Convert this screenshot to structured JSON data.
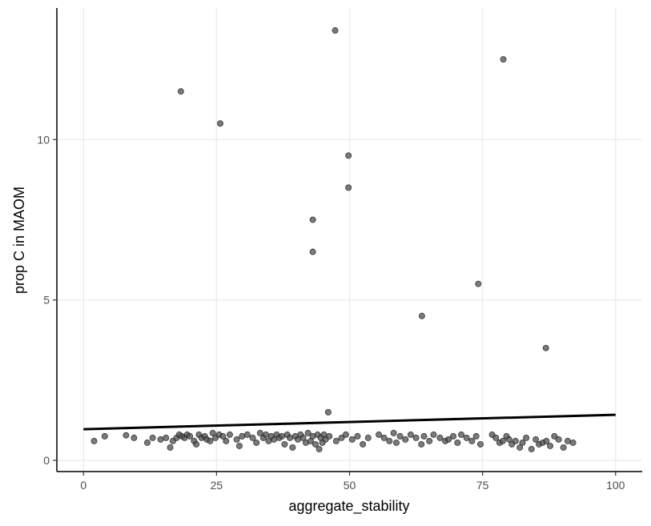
{
  "chart_data": {
    "type": "scatter",
    "xlabel": "aggregate_stability",
    "ylabel": "prop C in MAOM",
    "xlim": [
      -5,
      105
    ],
    "ylim": [
      -0.35,
      14.1
    ],
    "x_ticks": [
      0,
      25,
      50,
      75,
      100
    ],
    "x_tick_labels": [
      "0",
      "25",
      "50",
      "75",
      "100"
    ],
    "y_ticks": [
      0,
      5,
      10
    ],
    "y_tick_labels": [
      "0",
      "5",
      "10"
    ],
    "grid": true,
    "legend": "none",
    "point_color": "#4d4d4d",
    "line_color": "#000000",
    "points": [
      [
        47.3,
        13.4
      ],
      [
        78.9,
        12.5
      ],
      [
        18.3,
        11.5
      ],
      [
        25.7,
        10.5
      ],
      [
        49.8,
        9.5
      ],
      [
        49.8,
        8.5
      ],
      [
        43.1,
        7.5
      ],
      [
        43.1,
        6.5
      ],
      [
        74.2,
        5.5
      ],
      [
        63.6,
        4.5
      ],
      [
        86.9,
        3.5
      ],
      [
        46.0,
        1.5
      ],
      [
        2.0,
        0.6
      ],
      [
        4.0,
        0.75
      ],
      [
        8.0,
        0.78
      ],
      [
        9.5,
        0.7
      ],
      [
        12.0,
        0.55
      ],
      [
        13.0,
        0.7
      ],
      [
        14.5,
        0.65
      ],
      [
        15.5,
        0.7
      ],
      [
        16.3,
        0.4
      ],
      [
        16.8,
        0.6
      ],
      [
        17.5,
        0.7
      ],
      [
        18.0,
        0.8
      ],
      [
        18.5,
        0.75
      ],
      [
        19.0,
        0.7
      ],
      [
        19.5,
        0.8
      ],
      [
        20.0,
        0.75
      ],
      [
        20.8,
        0.6
      ],
      [
        21.2,
        0.5
      ],
      [
        21.7,
        0.8
      ],
      [
        22.2,
        0.7
      ],
      [
        22.8,
        0.75
      ],
      [
        23.2,
        0.65
      ],
      [
        23.8,
        0.6
      ],
      [
        24.3,
        0.85
      ],
      [
        24.8,
        0.7
      ],
      [
        25.5,
        0.8
      ],
      [
        26.2,
        0.75
      ],
      [
        26.8,
        0.6
      ],
      [
        27.5,
        0.8
      ],
      [
        28.8,
        0.65
      ],
      [
        29.3,
        0.45
      ],
      [
        29.8,
        0.75
      ],
      [
        30.8,
        0.8
      ],
      [
        31.8,
        0.7
      ],
      [
        32.5,
        0.55
      ],
      [
        33.2,
        0.85
      ],
      [
        33.8,
        0.7
      ],
      [
        34.3,
        0.8
      ],
      [
        34.8,
        0.6
      ],
      [
        35.3,
        0.75
      ],
      [
        35.8,
        0.65
      ],
      [
        36.3,
        0.8
      ],
      [
        36.8,
        0.7
      ],
      [
        37.3,
        0.75
      ],
      [
        37.8,
        0.5
      ],
      [
        38.3,
        0.8
      ],
      [
        38.8,
        0.7
      ],
      [
        39.3,
        0.4
      ],
      [
        39.8,
        0.75
      ],
      [
        40.3,
        0.65
      ],
      [
        40.8,
        0.8
      ],
      [
        41.3,
        0.7
      ],
      [
        41.8,
        0.55
      ],
      [
        42.2,
        0.85
      ],
      [
        42.7,
        0.6
      ],
      [
        43.1,
        0.75
      ],
      [
        43.6,
        0.5
      ],
      [
        44.0,
        0.8
      ],
      [
        44.3,
        0.35
      ],
      [
        44.6,
        0.7
      ],
      [
        44.9,
        0.55
      ],
      [
        45.2,
        0.8
      ],
      [
        45.5,
        0.65
      ],
      [
        46.2,
        0.75
      ],
      [
        47.5,
        0.6
      ],
      [
        48.5,
        0.7
      ],
      [
        49.3,
        0.8
      ],
      [
        50.5,
        0.65
      ],
      [
        51.5,
        0.75
      ],
      [
        52.5,
        0.5
      ],
      [
        53.5,
        0.7
      ],
      [
        55.5,
        0.8
      ],
      [
        56.5,
        0.7
      ],
      [
        57.5,
        0.6
      ],
      [
        58.3,
        0.85
      ],
      [
        58.8,
        0.55
      ],
      [
        59.5,
        0.75
      ],
      [
        60.5,
        0.65
      ],
      [
        61.5,
        0.8
      ],
      [
        62.5,
        0.7
      ],
      [
        63.5,
        0.5
      ],
      [
        64.0,
        0.75
      ],
      [
        65.0,
        0.6
      ],
      [
        65.8,
        0.8
      ],
      [
        67.0,
        0.7
      ],
      [
        68.0,
        0.6
      ],
      [
        68.6,
        0.65
      ],
      [
        69.5,
        0.75
      ],
      [
        70.3,
        0.55
      ],
      [
        71.0,
        0.8
      ],
      [
        72.0,
        0.7
      ],
      [
        73.0,
        0.6
      ],
      [
        73.8,
        0.75
      ],
      [
        74.6,
        0.5
      ],
      [
        76.8,
        0.8
      ],
      [
        77.5,
        0.7
      ],
      [
        78.2,
        0.55
      ],
      [
        78.8,
        0.6
      ],
      [
        79.5,
        0.75
      ],
      [
        80.0,
        0.65
      ],
      [
        80.5,
        0.5
      ],
      [
        81.2,
        0.6
      ],
      [
        82.0,
        0.4
      ],
      [
        82.5,
        0.55
      ],
      [
        83.2,
        0.7
      ],
      [
        84.2,
        0.35
      ],
      [
        85.0,
        0.65
      ],
      [
        85.6,
        0.5
      ],
      [
        86.3,
        0.55
      ],
      [
        87.0,
        0.6
      ],
      [
        87.7,
        0.45
      ],
      [
        88.5,
        0.75
      ],
      [
        89.3,
        0.65
      ],
      [
        90.2,
        0.4
      ],
      [
        91.0,
        0.6
      ],
      [
        92.0,
        0.55
      ]
    ],
    "regression_line": {
      "x": [
        0,
        100
      ],
      "y": [
        0.97,
        1.42
      ]
    }
  }
}
